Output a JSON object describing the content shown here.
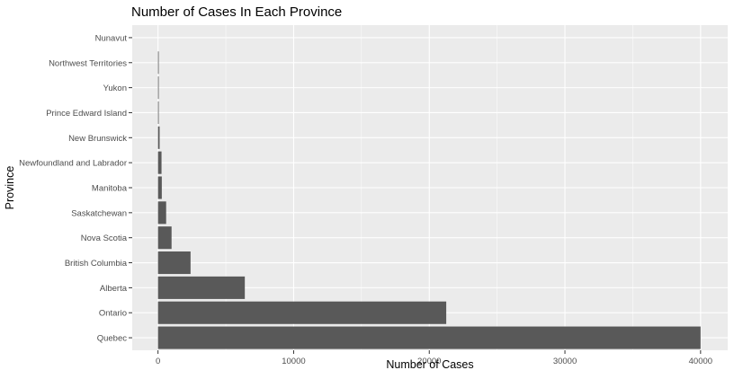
{
  "chart_data": {
    "type": "bar",
    "orientation": "horizontal",
    "title": "Number of Cases In Each Province",
    "xlabel": "Number of Cases",
    "ylabel": "Province",
    "categories": [
      "Quebec",
      "Ontario",
      "Alberta",
      "British Columbia",
      "Nova Scotia",
      "Saskatchewan",
      "Manitoba",
      "Newfoundland and Labrador",
      "New Brunswick",
      "Prince Edward Island",
      "Yukon",
      "Northwest Territories",
      "Nunavut"
    ],
    "values": [
      40000,
      21250,
      6400,
      2400,
      1000,
      600,
      280,
      260,
      120,
      27,
      11,
      5,
      0
    ],
    "xlim": [
      -1900,
      42000
    ],
    "xticks": [
      0,
      10000,
      20000,
      30000,
      40000
    ],
    "grid": true,
    "colors": {
      "bar": "#595959",
      "panel": "#ebebeb",
      "grid": "#ffffff"
    }
  }
}
